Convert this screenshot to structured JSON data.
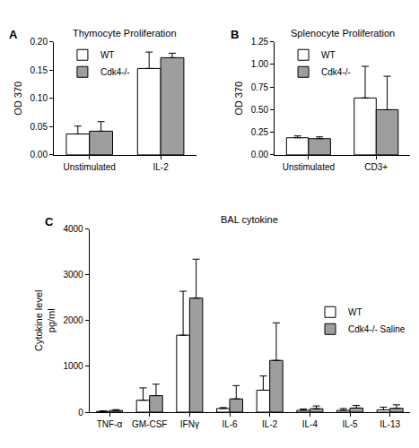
{
  "chart_data": [
    {
      "type": "bar",
      "panel": "A",
      "title": "Thymocyte Proliferation",
      "ylabel": "OD 370",
      "categories": [
        "Unstimulated",
        "IL-2"
      ],
      "series": [
        {
          "name": "WT",
          "color": "#ffffff",
          "values": [
            0.037,
            0.153
          ],
          "errors": [
            0.014,
            0.029
          ]
        },
        {
          "name": "Cdk4-/-",
          "color": "#9e9e9e",
          "values": [
            0.042,
            0.172
          ],
          "errors": [
            0.017,
            0.008
          ]
        }
      ],
      "ylim": [
        0,
        0.2
      ],
      "yticks": [
        {
          "value": 0,
          "label": "0.00"
        },
        {
          "value": 0.05,
          "label": "0.05"
        },
        {
          "value": 0.1,
          "label": "0.10"
        },
        {
          "value": 0.15,
          "label": "0.15"
        },
        {
          "value": 0.2,
          "label": "0.20"
        }
      ],
      "grid": false,
      "legend": "upper left"
    },
    {
      "type": "bar",
      "panel": "B",
      "title": "Splenocyte Proliferation",
      "ylabel": "OD 370",
      "categories": [
        "Unstimulated",
        "CD3+"
      ],
      "series": [
        {
          "name": "WT",
          "color": "#ffffff",
          "values": [
            0.19,
            0.63
          ],
          "errors": [
            0.02,
            0.35
          ]
        },
        {
          "name": "Cdk4-/-",
          "color": "#9e9e9e",
          "values": [
            0.18,
            0.5
          ],
          "errors": [
            0.02,
            0.37
          ]
        }
      ],
      "ylim": [
        0,
        1.25
      ],
      "yticks": [
        {
          "value": 0,
          "label": "0.00"
        },
        {
          "value": 0.25,
          "label": "0.25"
        },
        {
          "value": 0.5,
          "label": "0.50"
        },
        {
          "value": 0.75,
          "label": "0.75"
        },
        {
          "value": 1,
          "label": "1.00"
        },
        {
          "value": 1.25,
          "label": "1.25"
        }
      ],
      "grid": false,
      "legend": "upper left"
    },
    {
      "type": "bar",
      "panel": "C",
      "title": "BAL cytokine",
      "ylabel": "Cytokine level\npg/ml",
      "categories": [
        "TNF-α",
        "GM-CSF",
        "IFNγ",
        "IL-6",
        "IL-2",
        "IL-4",
        "IL-5",
        "IL-13"
      ],
      "series": [
        {
          "name": "WT",
          "color": "#ffffff",
          "values": [
            15,
            260,
            1680,
            80,
            480,
            40,
            40,
            50
          ],
          "errors": [
            15,
            270,
            960,
            20,
            310,
            30,
            40,
            60
          ]
        },
        {
          "name": "Cdk4-/- Saline",
          "color": "#9e9e9e",
          "values": [
            35,
            360,
            2490,
            290,
            1130,
            75,
            90,
            85
          ],
          "errors": [
            20,
            250,
            850,
            290,
            820,
            60,
            55,
            75
          ]
        }
      ],
      "ylim": [
        0,
        4000
      ],
      "yticks": [
        0,
        1000,
        2000,
        3000,
        4000
      ],
      "grid": false,
      "legend": "center right"
    }
  ]
}
